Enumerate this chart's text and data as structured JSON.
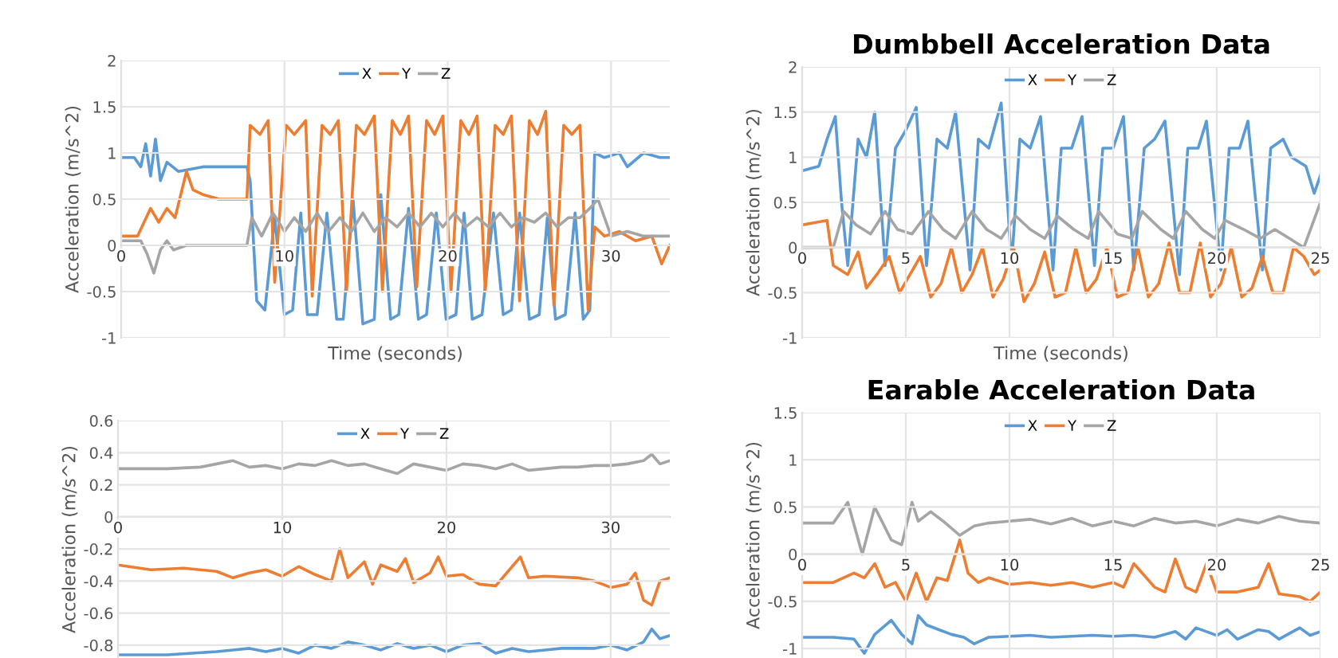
{
  "chart_data": [
    {
      "type": "line",
      "xlabel": "Time (seconds)",
      "ylabel": "Acceleration (m/s^2)",
      "xlim": [
        0,
        33.6
      ],
      "xticks": [
        0,
        10,
        20,
        30
      ],
      "ylim": [
        -1,
        2
      ],
      "yticks": [
        -1,
        -0.5,
        0,
        0.5,
        1,
        1.5,
        2
      ],
      "grid": true,
      "legend": "top",
      "series": [
        {
          "name": "X",
          "color": "#5b9bd5",
          "x": [
            0,
            0.8,
            1.2,
            1.5,
            1.8,
            2.1,
            2.4,
            2.8,
            3.5,
            5,
            6.5,
            7.7,
            7.9,
            8.3,
            8.8,
            9.4,
            10,
            10.5,
            11,
            11.4,
            12,
            12.6,
            13.2,
            13.6,
            14.2,
            14.8,
            15.5,
            15.9,
            16.5,
            17,
            17.6,
            18.2,
            18.7,
            19.3,
            19.9,
            20.5,
            21,
            21.5,
            22.1,
            22.8,
            23.4,
            23.9,
            24.4,
            25,
            25.6,
            26.1,
            26.6,
            27.2,
            27.8,
            28.3,
            28.7,
            29,
            29.6,
            30.5,
            31,
            32,
            33,
            33.6
          ],
          "values": [
            0.95,
            0.95,
            0.85,
            1.1,
            0.75,
            1.15,
            0.7,
            0.9,
            0.8,
            0.85,
            0.85,
            0.85,
            0.7,
            -0.6,
            -0.7,
            0.3,
            -0.75,
            -0.7,
            0.35,
            -0.75,
            -0.75,
            0.35,
            -0.8,
            -0.8,
            0.5,
            -0.85,
            -0.8,
            0.55,
            -0.8,
            -0.75,
            0.4,
            -0.8,
            -0.75,
            0.35,
            -0.8,
            -0.75,
            0.35,
            -0.8,
            -0.75,
            0.35,
            -0.75,
            -0.7,
            0.35,
            -0.8,
            -0.75,
            0.3,
            -0.8,
            -0.75,
            0.35,
            -0.8,
            -0.7,
            1.0,
            0.95,
            1.0,
            0.85,
            1.0,
            0.95,
            0.95
          ]
        },
        {
          "name": "Y",
          "color": "#ed7d31",
          "x": [
            0,
            1,
            1.8,
            2.3,
            2.8,
            3.3,
            4,
            4.4,
            5,
            6,
            7.7,
            7.9,
            8.5,
            9,
            9.4,
            10.1,
            10.6,
            11.3,
            11.7,
            12.3,
            12.8,
            13.3,
            13.8,
            14.4,
            14.9,
            15.5,
            16,
            16.6,
            17.1,
            17.6,
            18.1,
            18.7,
            19.2,
            19.7,
            20.2,
            20.8,
            21.3,
            21.8,
            22.3,
            22.9,
            23.4,
            23.9,
            24.4,
            25,
            25.5,
            26,
            26.5,
            27.1,
            27.6,
            28.1,
            28.6,
            29,
            29.6,
            30.5,
            31.5,
            32.5,
            33.1,
            33.6
          ],
          "values": [
            0.1,
            0.1,
            0.4,
            0.25,
            0.4,
            0.3,
            0.8,
            0.6,
            0.55,
            0.5,
            0.5,
            1.3,
            1.2,
            1.35,
            -0.4,
            1.3,
            1.2,
            1.35,
            -0.55,
            1.3,
            1.2,
            1.35,
            -0.5,
            1.3,
            1.2,
            1.4,
            -0.5,
            1.35,
            1.2,
            1.4,
            -0.45,
            1.35,
            1.2,
            1.4,
            -0.5,
            1.35,
            1.2,
            1.4,
            -0.5,
            1.3,
            1.2,
            1.4,
            -0.6,
            1.35,
            1.2,
            1.45,
            -0.65,
            1.3,
            1.2,
            1.3,
            -0.7,
            0.2,
            0.1,
            0.15,
            0.05,
            0.1,
            -0.2,
            0.0
          ]
        },
        {
          "name": "Z",
          "color": "#a5a5a5",
          "x": [
            0,
            1.2,
            1.6,
            2,
            2.4,
            2.8,
            3.2,
            4,
            6,
            7.7,
            8,
            8.6,
            9.3,
            10,
            10.6,
            11.3,
            12,
            12.7,
            13.4,
            14.1,
            14.8,
            15.5,
            16.2,
            16.9,
            17.6,
            18.3,
            19,
            19.7,
            20.4,
            21.1,
            21.8,
            22.5,
            23.2,
            23.9,
            24.6,
            25.3,
            26,
            26.7,
            27.4,
            28.1,
            28.7,
            29.2,
            30,
            31,
            32,
            33,
            33.6
          ],
          "values": [
            0.05,
            0.05,
            -0.1,
            -0.3,
            -0.05,
            0.05,
            -0.05,
            0.0,
            0.0,
            0.0,
            0.3,
            0.1,
            0.35,
            0.15,
            0.3,
            0.15,
            0.35,
            0.15,
            0.3,
            0.15,
            0.35,
            0.15,
            0.3,
            0.2,
            0.35,
            0.2,
            0.35,
            0.2,
            0.35,
            0.2,
            0.3,
            0.2,
            0.35,
            0.2,
            0.3,
            0.25,
            0.35,
            0.2,
            0.3,
            0.3,
            0.4,
            0.5,
            0.1,
            0.15,
            0.1,
            0.1,
            0.1
          ]
        }
      ]
    },
    {
      "type": "line",
      "title": "Dumbbell Acceleration Data",
      "xlabel": "Time (seconds)",
      "ylabel": "Acceleration (m/s^2)",
      "xlim": [
        0,
        25
      ],
      "xticks": [
        0,
        5,
        10,
        15,
        20,
        25
      ],
      "ylim": [
        -1,
        2
      ],
      "yticks": [
        -1,
        -0.5,
        0,
        0.5,
        1,
        1.5,
        2
      ],
      "grid": true,
      "legend": "top",
      "series": [
        {
          "name": "X",
          "color": "#5b9bd5",
          "x": [
            0,
            0.8,
            1.2,
            1.6,
            1.9,
            2.2,
            2.7,
            3.1,
            3.5,
            4.0,
            4.5,
            5.0,
            5.5,
            6.0,
            6.5,
            7.0,
            7.4,
            8.1,
            8.5,
            9.0,
            9.6,
            10.1,
            10.5,
            11.0,
            11.5,
            12.1,
            12.5,
            13.0,
            13.5,
            14.1,
            14.5,
            15.0,
            15.5,
            16.0,
            16.5,
            17.0,
            17.5,
            18.2,
            18.6,
            19.1,
            19.5,
            20.2,
            20.6,
            21.1,
            21.5,
            22.2,
            22.6,
            23.2,
            23.6,
            24.3,
            24.7,
            25
          ],
          "values": [
            0.85,
            0.9,
            1.2,
            1.45,
            0.5,
            -0.2,
            1.2,
            1.0,
            1.5,
            -0.2,
            1.1,
            1.3,
            1.55,
            -0.2,
            1.2,
            1.1,
            1.5,
            -0.25,
            1.2,
            1.1,
            1.6,
            -0.2,
            1.2,
            1.1,
            1.45,
            -0.25,
            1.1,
            1.1,
            1.45,
            -0.2,
            1.1,
            1.1,
            1.45,
            -0.25,
            1.1,
            1.2,
            1.4,
            -0.3,
            1.1,
            1.1,
            1.4,
            -0.25,
            1.1,
            1.1,
            1.4,
            -0.25,
            1.1,
            1.2,
            1.0,
            0.9,
            0.6,
            0.8
          ]
        },
        {
          "name": "Y",
          "color": "#ed7d31",
          "x": [
            0,
            1.2,
            1.5,
            2.2,
            2.7,
            3.1,
            3.6,
            4.2,
            4.7,
            5.2,
            5.7,
            6.2,
            6.7,
            7.2,
            7.7,
            8.2,
            8.7,
            9.2,
            9.7,
            10.2,
            10.7,
            11.2,
            11.7,
            12.2,
            12.7,
            13.2,
            13.7,
            14.2,
            14.7,
            15.2,
            15.7,
            16.2,
            16.7,
            17.2,
            17.7,
            18.2,
            18.7,
            19.2,
            19.7,
            20.2,
            20.7,
            21.2,
            21.7,
            22.2,
            22.7,
            23.2,
            23.7,
            24.2,
            24.7,
            25
          ],
          "values": [
            0.25,
            0.3,
            -0.2,
            -0.3,
            -0.05,
            -0.45,
            -0.3,
            -0.1,
            -0.5,
            -0.3,
            -0.1,
            -0.55,
            -0.4,
            0.0,
            -0.5,
            -0.3,
            0.0,
            -0.55,
            -0.35,
            0.0,
            -0.6,
            -0.4,
            -0.05,
            -0.55,
            -0.5,
            0.0,
            -0.5,
            -0.35,
            0.0,
            -0.55,
            -0.5,
            0.0,
            -0.55,
            -0.4,
            0.05,
            -0.5,
            -0.5,
            0.05,
            -0.55,
            -0.4,
            0.0,
            -0.55,
            -0.45,
            -0.1,
            -0.5,
            -0.5,
            0.0,
            -0.1,
            -0.3,
            -0.25
          ]
        },
        {
          "name": "Z",
          "color": "#a5a5a5",
          "x": [
            0,
            1.5,
            2.0,
            2.6,
            3.3,
            4.0,
            4.6,
            5.3,
            6.1,
            6.8,
            7.4,
            8.2,
            8.9,
            9.6,
            10.3,
            11.0,
            11.7,
            12.3,
            13.1,
            13.8,
            14.3,
            15.2,
            15.9,
            16.4,
            17.3,
            17.9,
            18.5,
            19.3,
            19.9,
            20.4,
            21.3,
            22.1,
            22.8,
            23.5,
            24.2,
            25
          ],
          "values": [
            0.0,
            0.0,
            0.4,
            0.25,
            0.15,
            0.4,
            0.2,
            0.15,
            0.4,
            0.2,
            0.1,
            0.4,
            0.2,
            0.1,
            0.35,
            0.2,
            0.1,
            0.35,
            0.2,
            0.1,
            0.4,
            0.15,
            0.1,
            0.4,
            0.2,
            0.1,
            0.4,
            0.2,
            0.1,
            0.3,
            0.2,
            0.1,
            0.2,
            0.1,
            0.0,
            0.5
          ]
        }
      ]
    },
    {
      "type": "line",
      "ylabel": "Acceleration (m/s^2)",
      "xlim": [
        0,
        33.6
      ],
      "xticks": [
        0,
        10,
        20,
        30
      ],
      "ylim": [
        -0.88,
        0.6
      ],
      "yticks": [
        -0.8,
        -0.6,
        -0.4,
        -0.2,
        0,
        0.2,
        0.4,
        0.6
      ],
      "grid": true,
      "legend": "top",
      "series": [
        {
          "name": "X",
          "color": "#5b9bd5",
          "x": [
            0,
            3,
            6,
            7,
            8,
            9,
            10,
            11,
            12,
            13,
            14,
            15,
            16,
            17,
            18,
            19,
            20,
            21,
            22,
            23,
            24,
            25,
            26,
            27,
            28,
            29,
            30,
            31,
            32,
            32.5,
            33,
            33.6
          ],
          "values": [
            -0.86,
            -0.86,
            -0.84,
            -0.83,
            -0.82,
            -0.84,
            -0.82,
            -0.85,
            -0.8,
            -0.82,
            -0.78,
            -0.8,
            -0.83,
            -0.79,
            -0.82,
            -0.8,
            -0.84,
            -0.8,
            -0.79,
            -0.85,
            -0.82,
            -0.84,
            -0.83,
            -0.82,
            -0.82,
            -0.82,
            -0.8,
            -0.83,
            -0.78,
            -0.7,
            -0.76,
            -0.74
          ]
        },
        {
          "name": "Y",
          "color": "#ed7d31",
          "x": [
            0,
            2,
            4,
            6,
            7,
            8,
            9,
            10,
            11,
            12,
            13,
            13.5,
            14,
            15,
            15.5,
            16,
            17,
            17.5,
            18,
            19,
            19.5,
            20,
            21,
            22,
            23,
            24,
            24.5,
            25,
            26,
            28,
            29,
            30,
            31,
            31.5,
            32,
            32.5,
            33,
            33.6
          ],
          "values": [
            -0.3,
            -0.33,
            -0.32,
            -0.34,
            -0.38,
            -0.35,
            -0.33,
            -0.37,
            -0.31,
            -0.36,
            -0.4,
            -0.2,
            -0.38,
            -0.28,
            -0.42,
            -0.3,
            -0.34,
            -0.26,
            -0.41,
            -0.35,
            -0.25,
            -0.37,
            -0.36,
            -0.42,
            -0.43,
            -0.31,
            -0.25,
            -0.38,
            -0.37,
            -0.38,
            -0.4,
            -0.44,
            -0.42,
            -0.35,
            -0.52,
            -0.55,
            -0.4,
            -0.38
          ]
        },
        {
          "name": "Z",
          "color": "#a5a5a5",
          "x": [
            0,
            3,
            5,
            6,
            7,
            8,
            9,
            10,
            11,
            12,
            13,
            14,
            15,
            16,
            17,
            18,
            19,
            20,
            21,
            22,
            23,
            24,
            25,
            26,
            27,
            28,
            29,
            30,
            31,
            32,
            32.5,
            33,
            33.6
          ],
          "values": [
            0.3,
            0.3,
            0.31,
            0.33,
            0.35,
            0.31,
            0.32,
            0.3,
            0.33,
            0.32,
            0.35,
            0.32,
            0.33,
            0.3,
            0.27,
            0.33,
            0.31,
            0.29,
            0.33,
            0.32,
            0.3,
            0.33,
            0.29,
            0.3,
            0.31,
            0.31,
            0.32,
            0.32,
            0.33,
            0.35,
            0.39,
            0.33,
            0.35
          ]
        }
      ]
    },
    {
      "type": "line",
      "title": "Earable Acceleration Data",
      "ylabel": "Acceleration (m/s^2)",
      "xlim": [
        0,
        25
      ],
      "xticks": [
        0,
        5,
        10,
        15,
        20,
        25
      ],
      "ylim": [
        -1.1,
        1.5
      ],
      "yticks": [
        -1,
        -0.5,
        0,
        0.5,
        1,
        1.5
      ],
      "grid": true,
      "legend": "top",
      "series": [
        {
          "name": "X",
          "color": "#5b9bd5",
          "x": [
            0,
            1.5,
            2.5,
            3.0,
            3.5,
            4.3,
            4.8,
            5.3,
            5.6,
            6.0,
            6.6,
            7.2,
            7.8,
            8.3,
            9,
            10,
            11,
            12,
            13,
            14,
            15,
            16,
            17,
            18,
            18.5,
            19,
            20,
            20.5,
            21,
            22,
            22.5,
            23,
            24,
            24.5,
            25
          ],
          "values": [
            -0.88,
            -0.88,
            -0.9,
            -1.05,
            -0.85,
            -0.7,
            -0.85,
            -0.95,
            -0.65,
            -0.75,
            -0.8,
            -0.85,
            -0.88,
            -0.95,
            -0.88,
            -0.87,
            -0.86,
            -0.88,
            -0.87,
            -0.86,
            -0.87,
            -0.86,
            -0.88,
            -0.82,
            -0.9,
            -0.78,
            -0.86,
            -0.8,
            -0.9,
            -0.8,
            -0.82,
            -0.9,
            -0.78,
            -0.86,
            -0.82
          ]
        },
        {
          "name": "Y",
          "color": "#ed7d31",
          "x": [
            0,
            1.5,
            2.5,
            3,
            3.5,
            4,
            4.5,
            5,
            5.5,
            6,
            6.5,
            7,
            7.6,
            8,
            8.5,
            9,
            10,
            11,
            12,
            13,
            14,
            15,
            15.5,
            16,
            17,
            17.5,
            18,
            18.5,
            19,
            19.5,
            20,
            21,
            22,
            22.5,
            23,
            24,
            24.5,
            25
          ],
          "values": [
            -0.3,
            -0.3,
            -0.2,
            -0.25,
            -0.1,
            -0.35,
            -0.3,
            -0.5,
            -0.2,
            -0.5,
            -0.25,
            -0.28,
            0.15,
            -0.2,
            -0.3,
            -0.25,
            -0.32,
            -0.3,
            -0.33,
            -0.3,
            -0.35,
            -0.3,
            -0.35,
            -0.1,
            -0.35,
            -0.4,
            -0.05,
            -0.35,
            -0.4,
            -0.1,
            -0.4,
            -0.4,
            -0.35,
            -0.1,
            -0.42,
            -0.45,
            -0.5,
            -0.4
          ]
        },
        {
          "name": "Z",
          "color": "#a5a5a5",
          "x": [
            0,
            1.5,
            2.2,
            2.9,
            3.5,
            4.3,
            4.8,
            5.3,
            5.6,
            6.2,
            6.8,
            7.6,
            8.3,
            9,
            10,
            11,
            12,
            13,
            14,
            15,
            16,
            17,
            18,
            19,
            20,
            21,
            22,
            23,
            24,
            25
          ],
          "values": [
            0.33,
            0.33,
            0.55,
            0.0,
            0.5,
            0.15,
            0.1,
            0.55,
            0.35,
            0.45,
            0.35,
            0.2,
            0.3,
            0.33,
            0.35,
            0.37,
            0.32,
            0.38,
            0.3,
            0.35,
            0.3,
            0.38,
            0.33,
            0.35,
            0.3,
            0.37,
            0.33,
            0.4,
            0.35,
            0.33
          ]
        }
      ]
    }
  ]
}
